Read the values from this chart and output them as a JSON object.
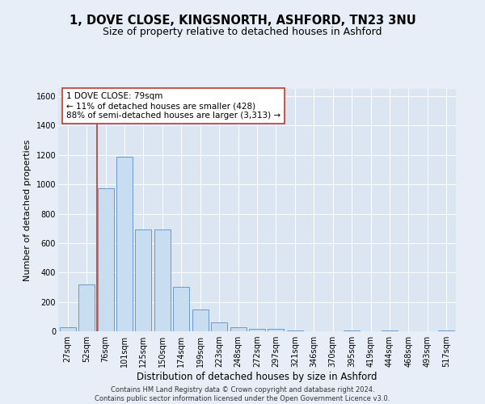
{
  "title1": "1, DOVE CLOSE, KINGSNORTH, ASHFORD, TN23 3NU",
  "title2": "Size of property relative to detached houses in Ashford",
  "xlabel": "Distribution of detached houses by size in Ashford",
  "ylabel": "Number of detached properties",
  "categories": [
    "27sqm",
    "52sqm",
    "76sqm",
    "101sqm",
    "125sqm",
    "150sqm",
    "174sqm",
    "199sqm",
    "223sqm",
    "248sqm",
    "272sqm",
    "297sqm",
    "321sqm",
    "346sqm",
    "370sqm",
    "395sqm",
    "419sqm",
    "444sqm",
    "468sqm",
    "493sqm",
    "517sqm"
  ],
  "values": [
    25,
    320,
    975,
    1190,
    695,
    695,
    305,
    150,
    60,
    25,
    18,
    18,
    5,
    0,
    0,
    5,
    0,
    5,
    0,
    0,
    5
  ],
  "bar_color": "#c9ddf0",
  "bar_edge_color": "#5b8dc8",
  "vline_color": "#c0392b",
  "vline_index": 2,
  "annotation_text": "1 DOVE CLOSE: 79sqm\n← 11% of detached houses are smaller (428)\n88% of semi-detached houses are larger (3,313) →",
  "ylim": [
    0,
    1650
  ],
  "yticks": [
    0,
    200,
    400,
    600,
    800,
    1000,
    1200,
    1400,
    1600
  ],
  "background_color": "#e8eef7",
  "plot_bg_color": "#dce6f2",
  "footer": "Contains HM Land Registry data © Crown copyright and database right 2024.\nContains public sector information licensed under the Open Government Licence v3.0.",
  "title1_fontsize": 10.5,
  "title2_fontsize": 9,
  "xlabel_fontsize": 8.5,
  "ylabel_fontsize": 8,
  "tick_fontsize": 7,
  "annotation_fontsize": 7.5,
  "footer_fontsize": 6
}
